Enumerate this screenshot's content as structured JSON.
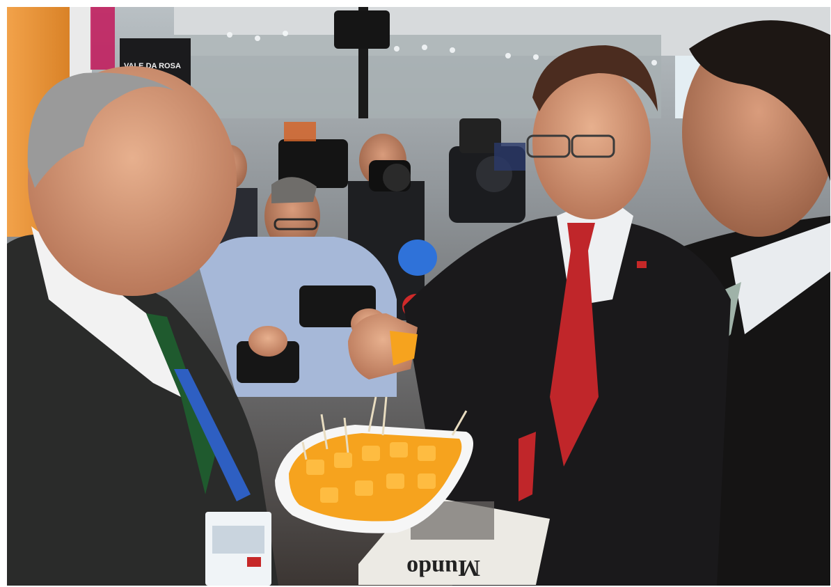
{
  "photo": {
    "sign_text": "VALE DA ROSA",
    "newspaper_masthead": "Mundo",
    "colors": {
      "booth_wall": "#e9963a",
      "ceiling": "#cfd3d6",
      "suit_dark": "#1f1c1d",
      "tie_red": "#c0262a",
      "tie_green": "#1f5a2e",
      "lanyard_blue": "#2e5fc2",
      "fruit_orange": "#f6a31e",
      "mic_blue": "#2f72d9"
    }
  }
}
